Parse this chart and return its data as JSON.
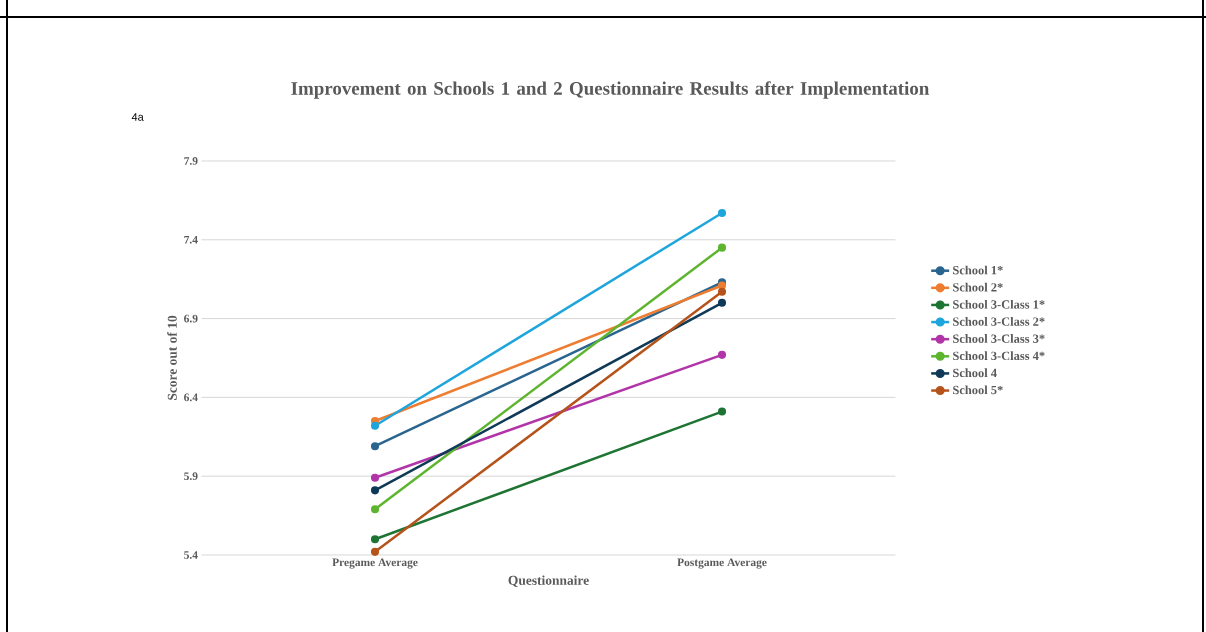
{
  "chart_data": {
    "type": "line",
    "title": "Improvement on Schools 1 and 2 Questionnaire Results after Implementation",
    "xlabel": "Questionnaire",
    "ylabel": "Score out of 10",
    "annotations": [
      "4a"
    ],
    "categories": [
      "Pregame Average",
      "Postgame Average"
    ],
    "series": [
      {
        "name": "School 1*",
        "color": "#2a6590",
        "values": [
          6.09,
          7.13
        ]
      },
      {
        "name": "School 2*",
        "color": "#ed7d31",
        "values": [
          6.25,
          7.11
        ]
      },
      {
        "name": "School 3-Class 1*",
        "color": "#1e7433",
        "values": [
          5.5,
          6.31
        ]
      },
      {
        "name": "School 3-Class 2*",
        "color": "#1ea5dc",
        "values": [
          6.22,
          7.57
        ]
      },
      {
        "name": "School 3-Class 3*",
        "color": "#b134a8",
        "values": [
          5.89,
          6.67
        ]
      },
      {
        "name": "School 3-Class 4*",
        "color": "#5db52f",
        "values": [
          5.69,
          7.35
        ]
      },
      {
        "name": "School 4",
        "color": "#0f3a57",
        "values": [
          5.81,
          7.0
        ]
      },
      {
        "name": "School 5*",
        "color": "#b5531b",
        "values": [
          5.42,
          7.07
        ]
      }
    ],
    "ylim": [
      5.4,
      7.9
    ],
    "yticks": [
      5.4,
      5.9,
      6.4,
      6.9,
      7.4,
      7.9
    ],
    "grid": "y",
    "legend": "right",
    "marker": "circle",
    "line_style": "solid"
  }
}
